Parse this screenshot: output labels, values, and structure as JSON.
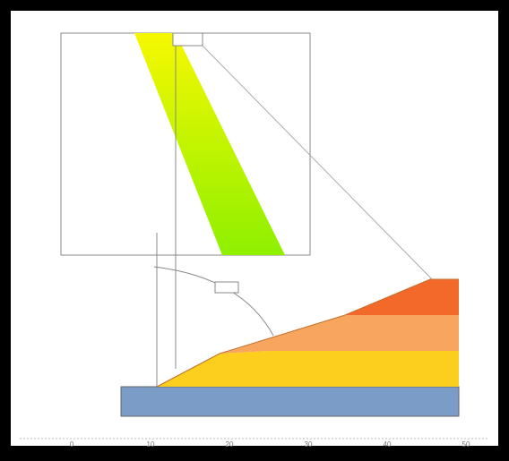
{
  "axis": {
    "tick_labels": [
      "0",
      "10",
      "20",
      "30",
      "40",
      "50"
    ]
  }
}
